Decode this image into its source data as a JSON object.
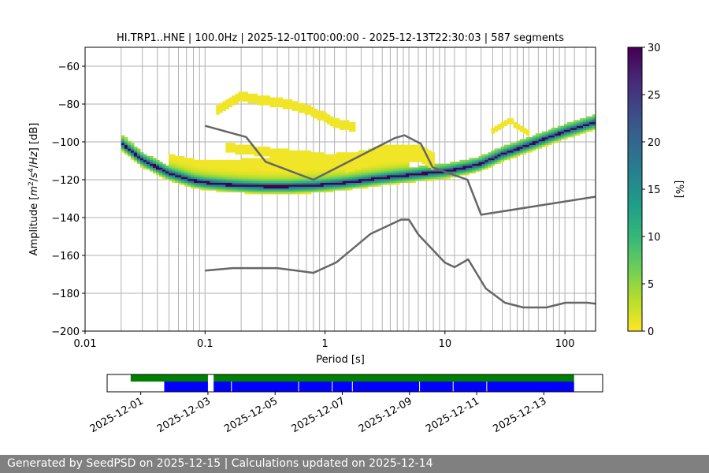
{
  "chart_data": [
    {
      "type": "heatmap",
      "title": "HI.TRP1..HNE | 100.0Hz | 2025-12-01T00:00:00 - 2025-12-13T22:30:03 | 587 segments",
      "xlabel": "Period [s]",
      "ylabel": "Amplitude [m^2/s^4/Hz] [dB]",
      "xscale": "log",
      "xlim": [
        0.01,
        180
      ],
      "ylim": [
        -200,
        -50
      ],
      "x_tick_labels": [
        "0.01",
        "0.1",
        "1",
        "10",
        "100"
      ],
      "y_tick_labels": [
        "−60",
        "−80",
        "−100",
        "−120",
        "−140",
        "−160",
        "−180",
        "−200"
      ],
      "colorbar": {
        "label": "[%]",
        "range": [
          0,
          30
        ],
        "tick_labels": [
          "0",
          "5",
          "10",
          "15",
          "20",
          "25",
          "30"
        ],
        "colormap": "viridis_r"
      },
      "mode_curve": {
        "period": [
          0.02,
          0.03,
          0.05,
          0.08,
          0.1,
          0.15,
          0.2,
          0.3,
          0.5,
          0.8,
          1,
          1.5,
          2,
          3,
          5,
          7,
          10,
          15,
          20,
          30,
          50,
          100,
          180
        ],
        "db": [
          -101,
          -110,
          -117,
          -121,
          -122,
          -123,
          -123.5,
          -124,
          -124,
          -123.5,
          -123,
          -122,
          -121,
          -119.5,
          -118,
          -117,
          -116,
          -114,
          -112,
          -107,
          -102,
          -95,
          -90
        ]
      },
      "secondary_lobes": [
        {
          "period": [
            0.12,
            0.2,
            0.3,
            0.5,
            0.8,
            1.2,
            1.8
          ],
          "db": [
            -84,
            -76,
            -78,
            -80,
            -84,
            -90,
            -92
          ],
          "spread_db": 2
        },
        {
          "period": [
            1.5,
            3,
            6,
            8
          ],
          "db": [
            -112,
            -106,
            -106,
            -110
          ],
          "spread_db": 4
        },
        {
          "period": [
            25,
            35,
            50
          ],
          "db": [
            -94,
            -89,
            -95
          ],
          "spread_db": 1
        },
        {
          "period": [
            0.15,
            0.3,
            0.6,
            1
          ],
          "db": [
            -103,
            -105,
            -107,
            -108
          ],
          "spread_db": 2
        }
      ],
      "noise_model_high": {
        "period": [
          0.1,
          0.22,
          0.32,
          0.8,
          3.8,
          4.6,
          6.3,
          7.9,
          15.4,
          20,
          354.8
        ],
        "db": [
          -91.5,
          -97.4,
          -110.5,
          -120,
          -98,
          -96.5,
          -101,
          -113.5,
          -120,
          -138.5,
          -126
        ]
      },
      "noise_model_low": {
        "period": [
          0.1,
          0.17,
          0.4,
          0.8,
          1.24,
          2.4,
          4.3,
          5,
          6,
          10,
          12,
          15.6,
          21.9,
          31.6,
          45,
          70,
          101,
          154,
          328,
          600,
          10000
        ],
        "db": [
          -168,
          -166.7,
          -166.7,
          -169.2,
          -163.7,
          -148.6,
          -141.1,
          -141.1,
          -149,
          -163.8,
          -166.2,
          -162.1,
          -177.5,
          -185,
          -187.5,
          -187.5,
          -185,
          -185,
          -187.5,
          -184.4,
          -151.5
        ]
      },
      "vertical_grid_periods": [
        0.02,
        0.03,
        0.04,
        0.05,
        0.06,
        0.07,
        0.08,
        0.09,
        0.1,
        0.2,
        0.3,
        0.4,
        0.5,
        0.6,
        0.7,
        0.8,
        0.9,
        1,
        1.2,
        1.5,
        2,
        2.5,
        3,
        3.5,
        4,
        4.5,
        5,
        6,
        7,
        8,
        9,
        10,
        12,
        15,
        20,
        25,
        30,
        35,
        40,
        45,
        50,
        60,
        70,
        80,
        90,
        100,
        120,
        150
      ]
    },
    {
      "type": "timeline",
      "start": "2025-11-30T00:00:00",
      "end": "2025-12-14T18:00:00",
      "x_tick_labels": [
        "2025-12-01",
        "2025-12-03",
        "2025-12-05",
        "2025-12-07",
        "2025-12-09",
        "2025-12-11",
        "2025-12-13"
      ],
      "x_tick_days": [
        1,
        3,
        5,
        7,
        9,
        11,
        13
      ],
      "data_bar": {
        "color": "#008000",
        "segments_days": [
          [
            0.7,
            3.0
          ],
          [
            3.17,
            13.9
          ]
        ]
      },
      "psd_bar": {
        "color": "#0000ff",
        "segments_days": [
          [
            1.7,
            3.0
          ],
          [
            3.17,
            13.9
          ]
        ],
        "gap_days": [
          3.7,
          5.7,
          6.7,
          7.3,
          9.3,
          10.3,
          11.3
        ]
      }
    }
  ],
  "footer": {
    "text": "Generated by SeedPSD on 2025-12-15 | Calculations updated on 2025-12-14"
  },
  "colors": {
    "grid": "#b0b0b0",
    "noise_model": "#666666",
    "footer_bg": "#808080"
  }
}
